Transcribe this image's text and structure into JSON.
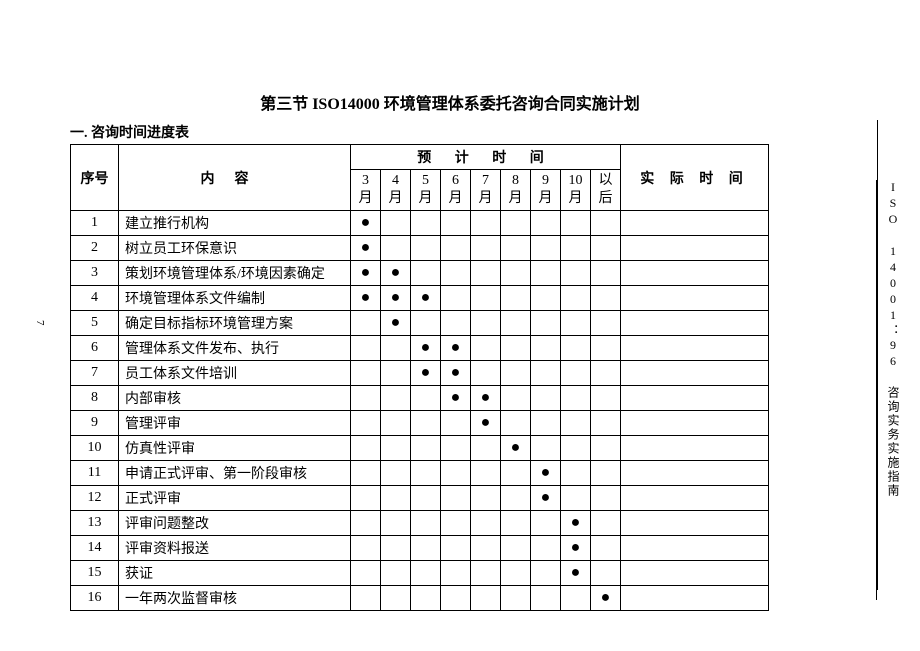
{
  "title": "第三节  ISO14000 环境管理体系委托咨询合同实施计划",
  "section_heading": "一. 咨询时间进度表",
  "side_text": "ISO 14001：96 咨询实务实施指南",
  "page_number": "7",
  "table": {
    "header": {
      "index": "序号",
      "content": "内容",
      "expected_time": "预 计 时 间",
      "actual_time": "实 际 时 间",
      "months": [
        "3月",
        "4月",
        "5月",
        "6月",
        "7月",
        "8月",
        "9月",
        "10月",
        "以后"
      ]
    },
    "rows": [
      {
        "idx": "1",
        "content": "建立推行机构",
        "dots": [
          1,
          0,
          0,
          0,
          0,
          0,
          0,
          0,
          0
        ]
      },
      {
        "idx": "2",
        "content": "树立员工环保意识",
        "dots": [
          1,
          0,
          0,
          0,
          0,
          0,
          0,
          0,
          0
        ]
      },
      {
        "idx": "3",
        "content": "策划环境管理体系/环境因素确定",
        "dots": [
          1,
          1,
          0,
          0,
          0,
          0,
          0,
          0,
          0
        ]
      },
      {
        "idx": "4",
        "content": "环境管理体系文件编制",
        "dots": [
          1,
          1,
          1,
          0,
          0,
          0,
          0,
          0,
          0
        ]
      },
      {
        "idx": "5",
        "content": "确定目标指标环境管理方案",
        "dots": [
          0,
          1,
          0,
          0,
          0,
          0,
          0,
          0,
          0
        ]
      },
      {
        "idx": "6",
        "content": "管理体系文件发布、执行",
        "dots": [
          0,
          0,
          1,
          1,
          0,
          0,
          0,
          0,
          0
        ]
      },
      {
        "idx": "7",
        "content": "员工体系文件培训",
        "dots": [
          0,
          0,
          1,
          1,
          0,
          0,
          0,
          0,
          0
        ]
      },
      {
        "idx": "8",
        "content": "内部审核",
        "dots": [
          0,
          0,
          0,
          1,
          1,
          0,
          0,
          0,
          0
        ]
      },
      {
        "idx": "9",
        "content": "管理评审",
        "dots": [
          0,
          0,
          0,
          0,
          1,
          0,
          0,
          0,
          0
        ]
      },
      {
        "idx": "10",
        "content": "仿真性评审",
        "dots": [
          0,
          0,
          0,
          0,
          0,
          1,
          0,
          0,
          0
        ]
      },
      {
        "idx": "11",
        "content": "申请正式评审、第一阶段审核",
        "dots": [
          0,
          0,
          0,
          0,
          0,
          0,
          1,
          0,
          0
        ]
      },
      {
        "idx": "12",
        "content": "正式评审",
        "dots": [
          0,
          0,
          0,
          0,
          0,
          0,
          1,
          0,
          0
        ]
      },
      {
        "idx": "13",
        "content": "评审问题整改",
        "dots": [
          0,
          0,
          0,
          0,
          0,
          0,
          0,
          1,
          0
        ]
      },
      {
        "idx": "14",
        "content": "评审资料报送",
        "dots": [
          0,
          0,
          0,
          0,
          0,
          0,
          0,
          1,
          0
        ]
      },
      {
        "idx": "15",
        "content": "获证",
        "dots": [
          0,
          0,
          0,
          0,
          0,
          0,
          0,
          1,
          0
        ]
      },
      {
        "idx": "16",
        "content": "一年两次监督审核",
        "dots": [
          0,
          0,
          0,
          0,
          0,
          0,
          0,
          0,
          1
        ]
      }
    ]
  },
  "dot_glyph": "●",
  "colors": {
    "text": "#000000",
    "border": "#000000",
    "background": "#ffffff"
  }
}
